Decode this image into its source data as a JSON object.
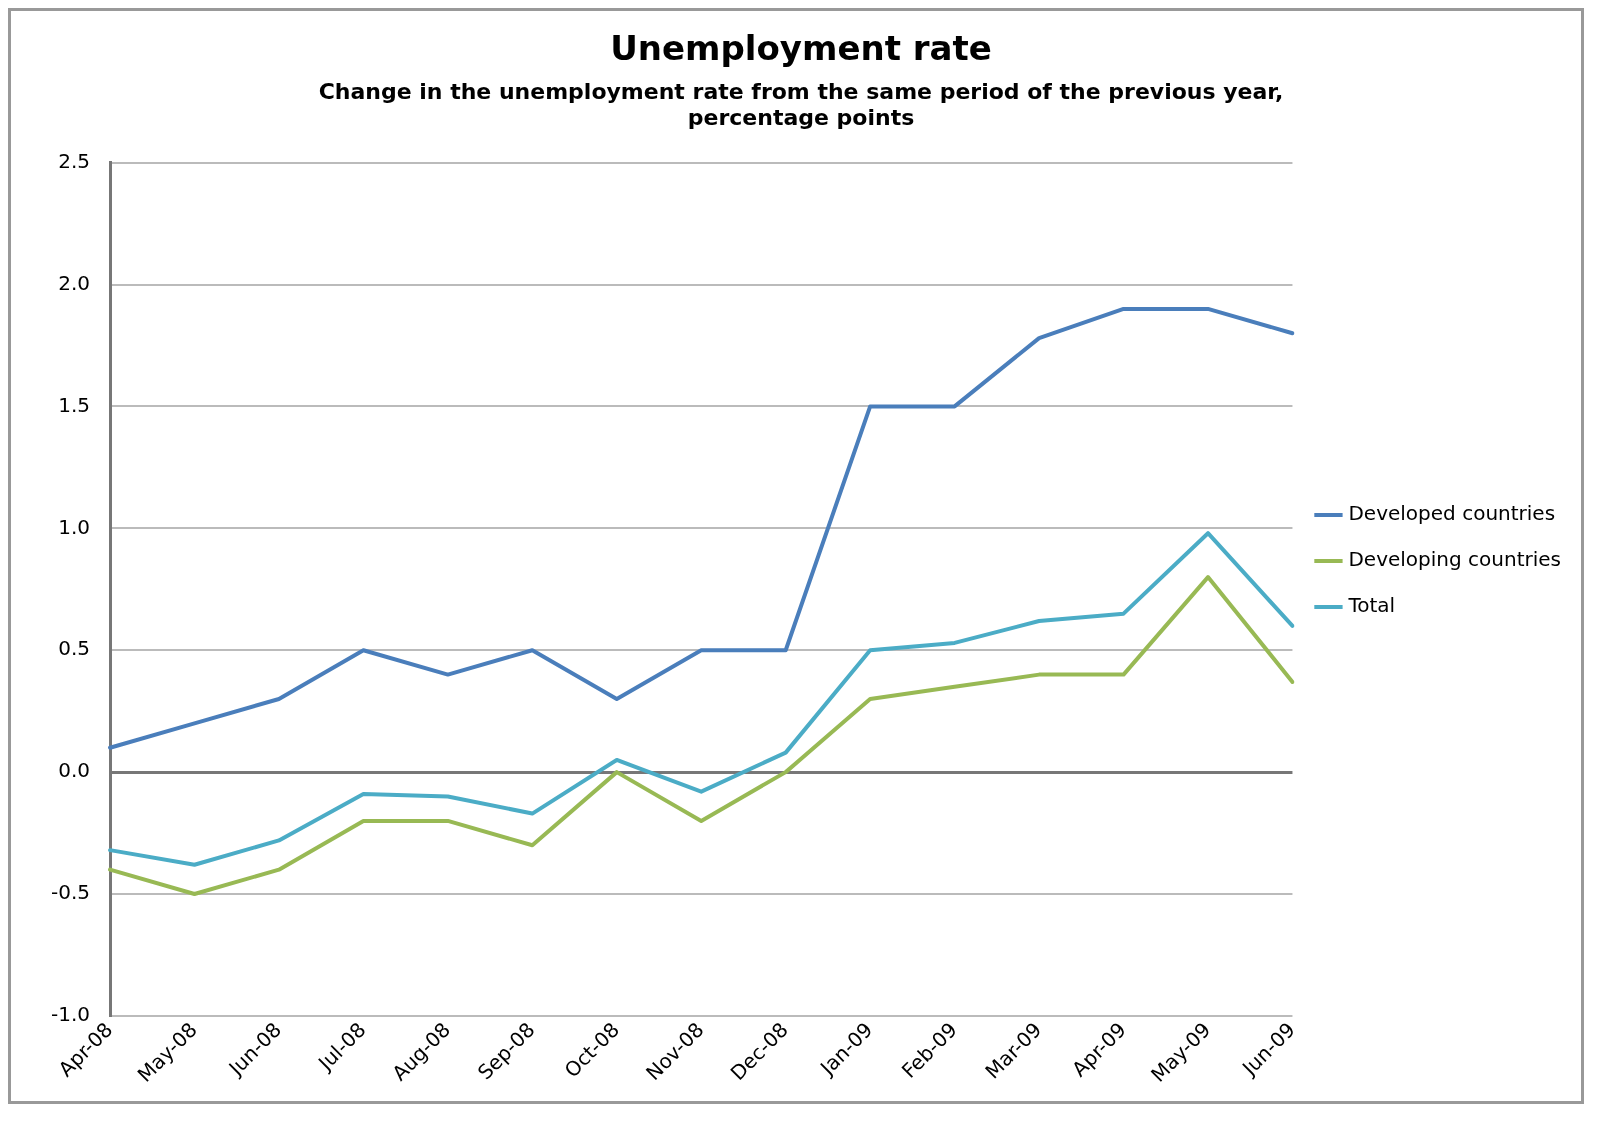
{
  "chart_data": {
    "type": "line",
    "title": "Unemployment rate",
    "subtitle": "Change in the unemployment rate from the same period of the previous year, percentage points",
    "categories": [
      "Apr-08",
      "May-08",
      "Jun-08",
      "Jul-08",
      "Aug-08",
      "Sep-08",
      "Oct-08",
      "Nov-08",
      "Dec-08",
      "Jan-09",
      "Feb-09",
      "Mar-09",
      "Apr-09",
      "May-09",
      "Jun-09"
    ],
    "series": [
      {
        "name": "Developed countries",
        "color": "#4a7ebb",
        "values": [
          0.1,
          0.2,
          0.3,
          0.5,
          0.4,
          0.5,
          0.3,
          0.5,
          0.5,
          1.5,
          1.5,
          1.78,
          1.9,
          1.9,
          1.8
        ]
      },
      {
        "name": "Developing countries",
        "color": "#98b954",
        "values": [
          -0.4,
          -0.5,
          -0.4,
          -0.2,
          -0.2,
          -0.3,
          0.0,
          -0.2,
          0.0,
          0.3,
          0.35,
          0.4,
          0.4,
          0.8,
          0.37
        ]
      },
      {
        "name": "Total",
        "color": "#4bacc6",
        "values": [
          -0.32,
          -0.38,
          -0.28,
          -0.09,
          -0.1,
          -0.17,
          0.05,
          -0.08,
          0.08,
          0.5,
          0.53,
          0.62,
          0.65,
          0.98,
          0.6
        ]
      }
    ],
    "ylim": [
      -1,
      2.5
    ],
    "yticks": [
      {
        "value": -1,
        "label": "-1.0"
      },
      {
        "value": -0.5,
        "label": "-0.5"
      },
      {
        "value": 0,
        "label": "0.0"
      },
      {
        "value": 0.5,
        "label": "0.5"
      },
      {
        "value": 1,
        "label": "1.0"
      },
      {
        "value": 1.5,
        "label": "1.5"
      },
      {
        "value": 2,
        "label": "2.0"
      },
      {
        "value": 2.5,
        "label": "2.5"
      }
    ],
    "grid": "y",
    "legend": "right",
    "marker": "none",
    "line_style": "solid"
  }
}
